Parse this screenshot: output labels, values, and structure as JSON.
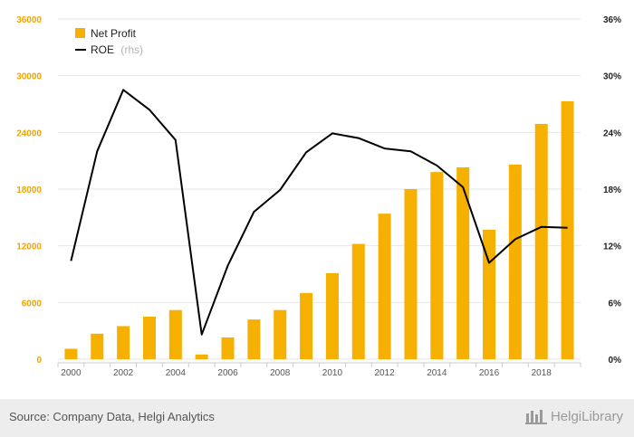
{
  "chart_data": {
    "type": "bar+line",
    "categories": [
      "2000",
      "2001",
      "2002",
      "2003",
      "2004",
      "2005",
      "2006",
      "2007",
      "2008",
      "2009",
      "2010",
      "2011",
      "2012",
      "2013",
      "2014",
      "2015",
      "2016",
      "2017",
      "2018",
      "2019"
    ],
    "x_tick_labels": [
      "2000",
      "2002",
      "2004",
      "2006",
      "2008",
      "2010",
      "2012",
      "2014",
      "2016",
      "2018"
    ],
    "series": [
      {
        "name": "Net Profit",
        "type": "bar",
        "axis": "left",
        "color": "#f5b000",
        "values": [
          1100,
          2700,
          3500,
          4500,
          5200,
          500,
          2300,
          4200,
          5200,
          7000,
          9100,
          12200,
          15400,
          18000,
          19800,
          20300,
          13700,
          20600,
          24900,
          27300
        ]
      },
      {
        "name": "ROE",
        "name_suffix": "(rhs)",
        "type": "line",
        "axis": "right",
        "color": "#000000",
        "values": [
          10.4,
          22.0,
          28.5,
          26.4,
          23.2,
          2.6,
          9.9,
          15.6,
          17.9,
          21.9,
          23.9,
          23.4,
          22.3,
          22.0,
          20.5,
          18.2,
          10.2,
          12.7,
          14.0,
          13.9
        ]
      }
    ],
    "y_left": {
      "ylim": [
        0,
        36000
      ],
      "ticks": [
        "0",
        "6000",
        "12000",
        "18000",
        "24000",
        "30000",
        "36000"
      ]
    },
    "y_right": {
      "ylim": [
        0,
        36
      ],
      "ticks": [
        "0%",
        "6%",
        "12%",
        "18%",
        "24%",
        "30%",
        "36%"
      ]
    },
    "legend_position": "top-left",
    "grid": "horizontal"
  },
  "footer": {
    "source": "Source: Company Data, Helgi Analytics",
    "brand": "HelgiLibrary"
  },
  "colors": {
    "bar": "#f5b000",
    "line": "#000000",
    "grid": "#e6e6e6",
    "footer_bg": "#ededed"
  }
}
